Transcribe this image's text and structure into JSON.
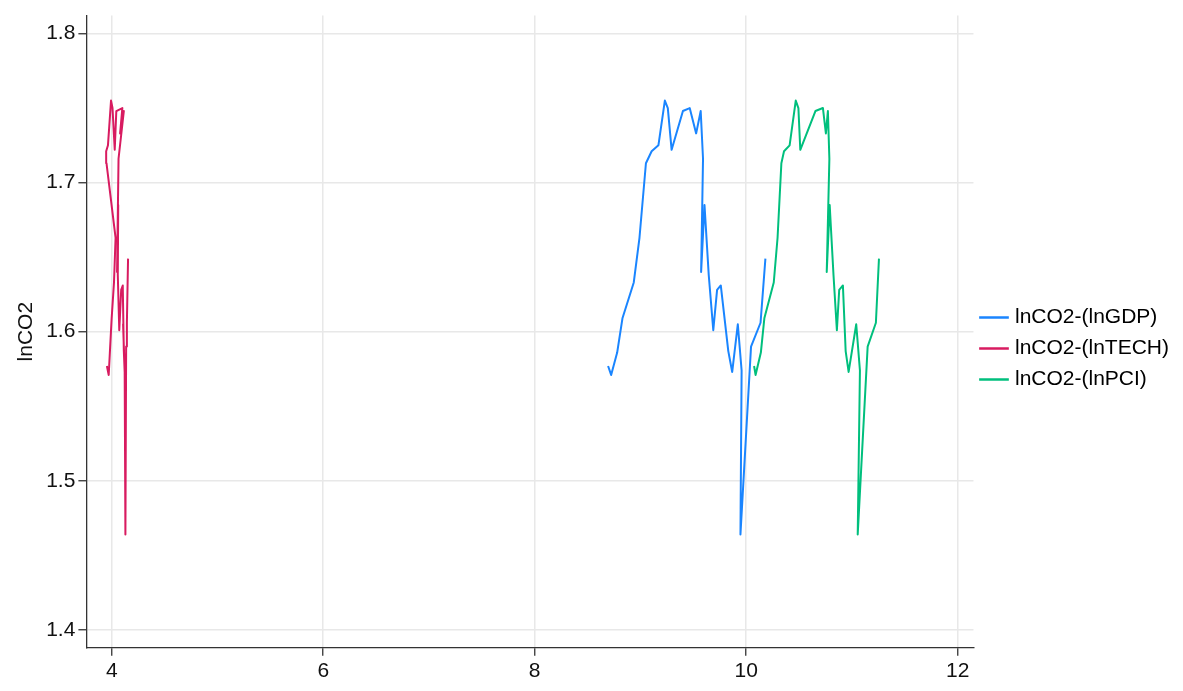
{
  "chart_data": {
    "type": "line",
    "ylabel": "lnCO2",
    "xlim": [
      3.76,
      12.15
    ],
    "ylim": [
      1.388,
      1.812
    ],
    "xticks": [
      4,
      6,
      8,
      10,
      12
    ],
    "yticks": [
      1.4,
      1.5,
      1.6,
      1.7,
      1.8
    ],
    "grid": true,
    "legend": "right",
    "marker": "none",
    "line_style": "solid",
    "series": [
      {
        "name": "lnCO2-(lnGDP)",
        "color": "#1a85ff",
        "x": [
          8.694,
          8.723,
          8.78,
          8.83,
          8.937,
          8.991,
          9.052,
          9.106,
          9.17,
          9.231,
          9.259,
          9.295,
          9.402,
          9.466,
          9.527,
          9.57,
          9.592,
          9.574,
          9.606,
          9.646,
          9.689,
          9.725,
          9.76,
          9.831,
          9.868,
          9.921,
          9.957,
          9.946,
          10.046,
          10.136,
          10.182
        ],
        "values": [
          1.577,
          1.571,
          1.586,
          1.609,
          1.633,
          1.663,
          1.713,
          1.721,
          1.725,
          1.755,
          1.75,
          1.722,
          1.748,
          1.75,
          1.733,
          1.748,
          1.716,
          1.64,
          1.685,
          1.638,
          1.601,
          1.628,
          1.631,
          1.587,
          1.573,
          1.605,
          1.574,
          1.464,
          1.59,
          1.606,
          1.649
        ]
      },
      {
        "name": "lnCO2-(lnTECH)",
        "color": "#d81b60",
        "x": [
          3.954,
          3.971,
          3.982,
          3.999,
          4.021,
          4.036,
          3.95,
          3.947,
          3.964,
          3.993,
          4.007,
          4.028,
          4.043,
          4.1,
          4.079,
          4.114,
          4.064,
          4.05,
          4.061,
          4.057,
          4.071,
          4.089,
          4.104,
          4.114,
          4.122,
          4.107,
          4.122,
          4.129,
          4.136,
          4.143,
          4.154
        ],
        "values": [
          1.577,
          1.571,
          1.586,
          1.609,
          1.633,
          1.663,
          1.713,
          1.721,
          1.725,
          1.755,
          1.75,
          1.722,
          1.748,
          1.75,
          1.733,
          1.748,
          1.716,
          1.64,
          1.685,
          1.638,
          1.601,
          1.628,
          1.631,
          1.587,
          1.573,
          1.605,
          1.574,
          1.464,
          1.59,
          1.606,
          1.649
        ]
      },
      {
        "name": "lnCO2-(lnPCI)",
        "color": "#00bf7d",
        "x": [
          10.075,
          10.089,
          10.139,
          10.172,
          10.261,
          10.297,
          10.333,
          10.358,
          10.411,
          10.469,
          10.494,
          10.512,
          10.655,
          10.726,
          10.754,
          10.773,
          10.787,
          10.762,
          10.79,
          10.826,
          10.858,
          10.88,
          10.915,
          10.941,
          10.969,
          11.041,
          11.076,
          11.055,
          11.149,
          11.227,
          11.256
        ],
        "values": [
          1.577,
          1.571,
          1.586,
          1.609,
          1.633,
          1.663,
          1.713,
          1.721,
          1.725,
          1.755,
          1.75,
          1.722,
          1.748,
          1.75,
          1.733,
          1.748,
          1.716,
          1.64,
          1.685,
          1.638,
          1.601,
          1.628,
          1.631,
          1.587,
          1.573,
          1.605,
          1.574,
          1.464,
          1.59,
          1.606,
          1.649
        ]
      }
    ]
  }
}
